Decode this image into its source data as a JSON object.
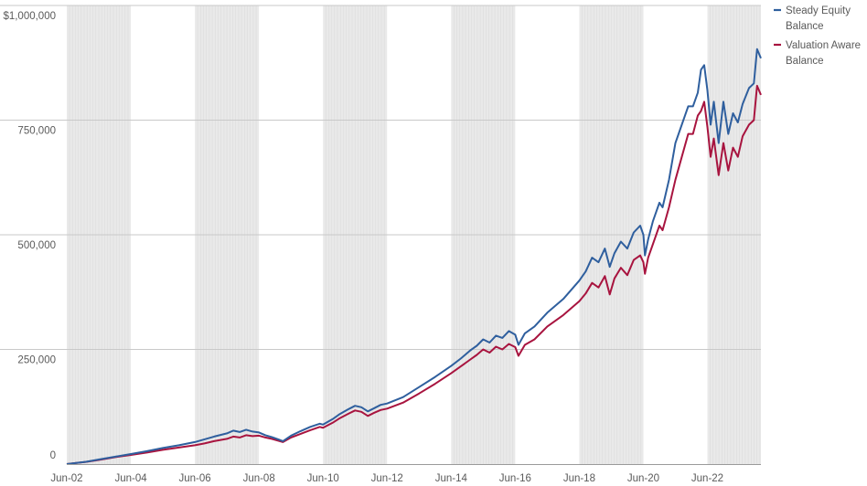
{
  "chart_data": {
    "type": "line",
    "title": "",
    "xlabel": "",
    "ylabel": "",
    "x_start": 2002.0,
    "x_end": 2023.67,
    "ylim": [
      0,
      1000000
    ],
    "y_ticks": [
      {
        "value": 0,
        "label": "0"
      },
      {
        "value": 250000,
        "label": "250,000"
      },
      {
        "value": 500000,
        "label": "500,000"
      },
      {
        "value": 750000,
        "label": "750,000"
      },
      {
        "value": 1000000,
        "label": "$1,000,000"
      }
    ],
    "x_ticks": [
      {
        "value": 2002.0,
        "label": "Jun-02"
      },
      {
        "value": 2004.0,
        "label": "Jun-04"
      },
      {
        "value": 2006.0,
        "label": "Jun-06"
      },
      {
        "value": 2008.0,
        "label": "Jun-08"
      },
      {
        "value": 2010.0,
        "label": "Jun-10"
      },
      {
        "value": 2012.0,
        "label": "Jun-12"
      },
      {
        "value": 2014.0,
        "label": "Jun-14"
      },
      {
        "value": 2016.0,
        "label": "Jun-16"
      },
      {
        "value": 2018.0,
        "label": "Jun-18"
      },
      {
        "value": 2020.0,
        "label": "Jun-20"
      },
      {
        "value": 2022.0,
        "label": "Jun-22"
      }
    ],
    "shaded_periods": [
      [
        2002.0,
        2004.0
      ],
      [
        2006.0,
        2008.0
      ],
      [
        2010.0,
        2012.0
      ],
      [
        2014.0,
        2016.0
      ],
      [
        2018.0,
        2020.0
      ],
      [
        2022.0,
        2023.67
      ]
    ],
    "legend_position": "top-right",
    "series": [
      {
        "name": "Steady Equity Balance",
        "legend_lines": [
          "Steady Equity",
          "Balance"
        ],
        "color": "#2f5f9e",
        "points": [
          [
            2002.0,
            0
          ],
          [
            2002.3,
            2500
          ],
          [
            2002.6,
            5000
          ],
          [
            2003.0,
            10000
          ],
          [
            2003.5,
            16000
          ],
          [
            2004.0,
            22000
          ],
          [
            2004.5,
            28000
          ],
          [
            2005.0,
            35000
          ],
          [
            2005.5,
            41000
          ],
          [
            2006.0,
            48000
          ],
          [
            2006.3,
            54000
          ],
          [
            2006.6,
            60000
          ],
          [
            2007.0,
            67000
          ],
          [
            2007.2,
            73000
          ],
          [
            2007.4,
            70000
          ],
          [
            2007.6,
            75000
          ],
          [
            2007.8,
            71000
          ],
          [
            2008.0,
            69000
          ],
          [
            2008.2,
            63000
          ],
          [
            2008.4,
            59000
          ],
          [
            2008.6,
            54000
          ],
          [
            2008.75,
            50000
          ],
          [
            2009.0,
            62000
          ],
          [
            2009.3,
            72000
          ],
          [
            2009.6,
            81000
          ],
          [
            2009.9,
            88000
          ],
          [
            2010.0,
            86000
          ],
          [
            2010.3,
            98000
          ],
          [
            2010.5,
            108000
          ],
          [
            2010.8,
            120000
          ],
          [
            2011.0,
            127000
          ],
          [
            2011.2,
            124000
          ],
          [
            2011.4,
            115000
          ],
          [
            2011.6,
            122000
          ],
          [
            2011.8,
            129000
          ],
          [
            2012.0,
            132000
          ],
          [
            2012.5,
            146000
          ],
          [
            2013.0,
            168000
          ],
          [
            2013.5,
            190000
          ],
          [
            2014.0,
            214000
          ],
          [
            2014.3,
            230000
          ],
          [
            2014.6,
            248000
          ],
          [
            2014.8,
            258000
          ],
          [
            2015.0,
            272000
          ],
          [
            2015.2,
            265000
          ],
          [
            2015.4,
            280000
          ],
          [
            2015.6,
            275000
          ],
          [
            2015.8,
            290000
          ],
          [
            2016.0,
            282000
          ],
          [
            2016.1,
            260000
          ],
          [
            2016.3,
            285000
          ],
          [
            2016.6,
            300000
          ],
          [
            2017.0,
            330000
          ],
          [
            2017.5,
            360000
          ],
          [
            2018.0,
            400000
          ],
          [
            2018.2,
            420000
          ],
          [
            2018.4,
            450000
          ],
          [
            2018.6,
            440000
          ],
          [
            2018.8,
            470000
          ],
          [
            2018.95,
            430000
          ],
          [
            2019.1,
            460000
          ],
          [
            2019.3,
            485000
          ],
          [
            2019.5,
            470000
          ],
          [
            2019.7,
            505000
          ],
          [
            2019.9,
            520000
          ],
          [
            2020.0,
            500000
          ],
          [
            2020.05,
            455000
          ],
          [
            2020.15,
            490000
          ],
          [
            2020.3,
            530000
          ],
          [
            2020.5,
            570000
          ],
          [
            2020.6,
            560000
          ],
          [
            2020.8,
            620000
          ],
          [
            2021.0,
            700000
          ],
          [
            2021.2,
            740000
          ],
          [
            2021.4,
            780000
          ],
          [
            2021.55,
            780000
          ],
          [
            2021.7,
            810000
          ],
          [
            2021.8,
            860000
          ],
          [
            2021.9,
            870000
          ],
          [
            2022.0,
            815000
          ],
          [
            2022.1,
            740000
          ],
          [
            2022.2,
            790000
          ],
          [
            2022.35,
            700000
          ],
          [
            2022.5,
            790000
          ],
          [
            2022.65,
            720000
          ],
          [
            2022.8,
            765000
          ],
          [
            2022.95,
            745000
          ],
          [
            2023.1,
            785000
          ],
          [
            2023.3,
            820000
          ],
          [
            2023.45,
            830000
          ],
          [
            2023.55,
            905000
          ],
          [
            2023.67,
            885000
          ]
        ]
      },
      {
        "name": "Valuation Aware Balance",
        "legend_lines": [
          "Valuation Aware",
          "Balance"
        ],
        "color": "#a8143f",
        "points": [
          [
            2002.0,
            0
          ],
          [
            2002.3,
            2300
          ],
          [
            2002.6,
            4800
          ],
          [
            2003.0,
            9000
          ],
          [
            2003.5,
            15000
          ],
          [
            2004.0,
            20000
          ],
          [
            2004.5,
            25000
          ],
          [
            2005.0,
            31000
          ],
          [
            2005.5,
            36000
          ],
          [
            2006.0,
            41000
          ],
          [
            2006.3,
            45000
          ],
          [
            2006.6,
            50000
          ],
          [
            2007.0,
            55000
          ],
          [
            2007.2,
            60000
          ],
          [
            2007.4,
            58000
          ],
          [
            2007.6,
            63000
          ],
          [
            2007.8,
            61000
          ],
          [
            2008.0,
            62000
          ],
          [
            2008.2,
            58000
          ],
          [
            2008.4,
            55000
          ],
          [
            2008.6,
            51000
          ],
          [
            2008.75,
            48000
          ],
          [
            2009.0,
            58000
          ],
          [
            2009.3,
            66000
          ],
          [
            2009.6,
            74000
          ],
          [
            2009.9,
            81000
          ],
          [
            2010.0,
            79000
          ],
          [
            2010.3,
            90000
          ],
          [
            2010.5,
            99000
          ],
          [
            2010.8,
            110000
          ],
          [
            2011.0,
            117000
          ],
          [
            2011.2,
            114000
          ],
          [
            2011.4,
            105000
          ],
          [
            2011.6,
            112000
          ],
          [
            2011.8,
            118000
          ],
          [
            2012.0,
            121000
          ],
          [
            2012.5,
            134000
          ],
          [
            2013.0,
            154000
          ],
          [
            2013.5,
            175000
          ],
          [
            2014.0,
            198000
          ],
          [
            2014.3,
            213000
          ],
          [
            2014.6,
            228000
          ],
          [
            2014.8,
            238000
          ],
          [
            2015.0,
            250000
          ],
          [
            2015.2,
            243000
          ],
          [
            2015.4,
            256000
          ],
          [
            2015.6,
            250000
          ],
          [
            2015.8,
            262000
          ],
          [
            2016.0,
            255000
          ],
          [
            2016.1,
            236000
          ],
          [
            2016.3,
            260000
          ],
          [
            2016.6,
            272000
          ],
          [
            2017.0,
            300000
          ],
          [
            2017.5,
            325000
          ],
          [
            2018.0,
            355000
          ],
          [
            2018.2,
            372000
          ],
          [
            2018.4,
            395000
          ],
          [
            2018.6,
            385000
          ],
          [
            2018.8,
            410000
          ],
          [
            2018.95,
            370000
          ],
          [
            2019.1,
            405000
          ],
          [
            2019.3,
            428000
          ],
          [
            2019.5,
            412000
          ],
          [
            2019.7,
            445000
          ],
          [
            2019.9,
            455000
          ],
          [
            2020.0,
            440000
          ],
          [
            2020.05,
            415000
          ],
          [
            2020.15,
            450000
          ],
          [
            2020.3,
            480000
          ],
          [
            2020.5,
            520000
          ],
          [
            2020.6,
            510000
          ],
          [
            2020.8,
            560000
          ],
          [
            2021.0,
            620000
          ],
          [
            2021.2,
            670000
          ],
          [
            2021.4,
            720000
          ],
          [
            2021.55,
            720000
          ],
          [
            2021.7,
            760000
          ],
          [
            2021.8,
            770000
          ],
          [
            2021.9,
            790000
          ],
          [
            2022.0,
            735000
          ],
          [
            2022.1,
            670000
          ],
          [
            2022.2,
            710000
          ],
          [
            2022.35,
            630000
          ],
          [
            2022.5,
            700000
          ],
          [
            2022.65,
            640000
          ],
          [
            2022.8,
            690000
          ],
          [
            2022.95,
            670000
          ],
          [
            2023.1,
            715000
          ],
          [
            2023.3,
            740000
          ],
          [
            2023.45,
            750000
          ],
          [
            2023.55,
            825000
          ],
          [
            2023.67,
            805000
          ]
        ]
      }
    ]
  }
}
